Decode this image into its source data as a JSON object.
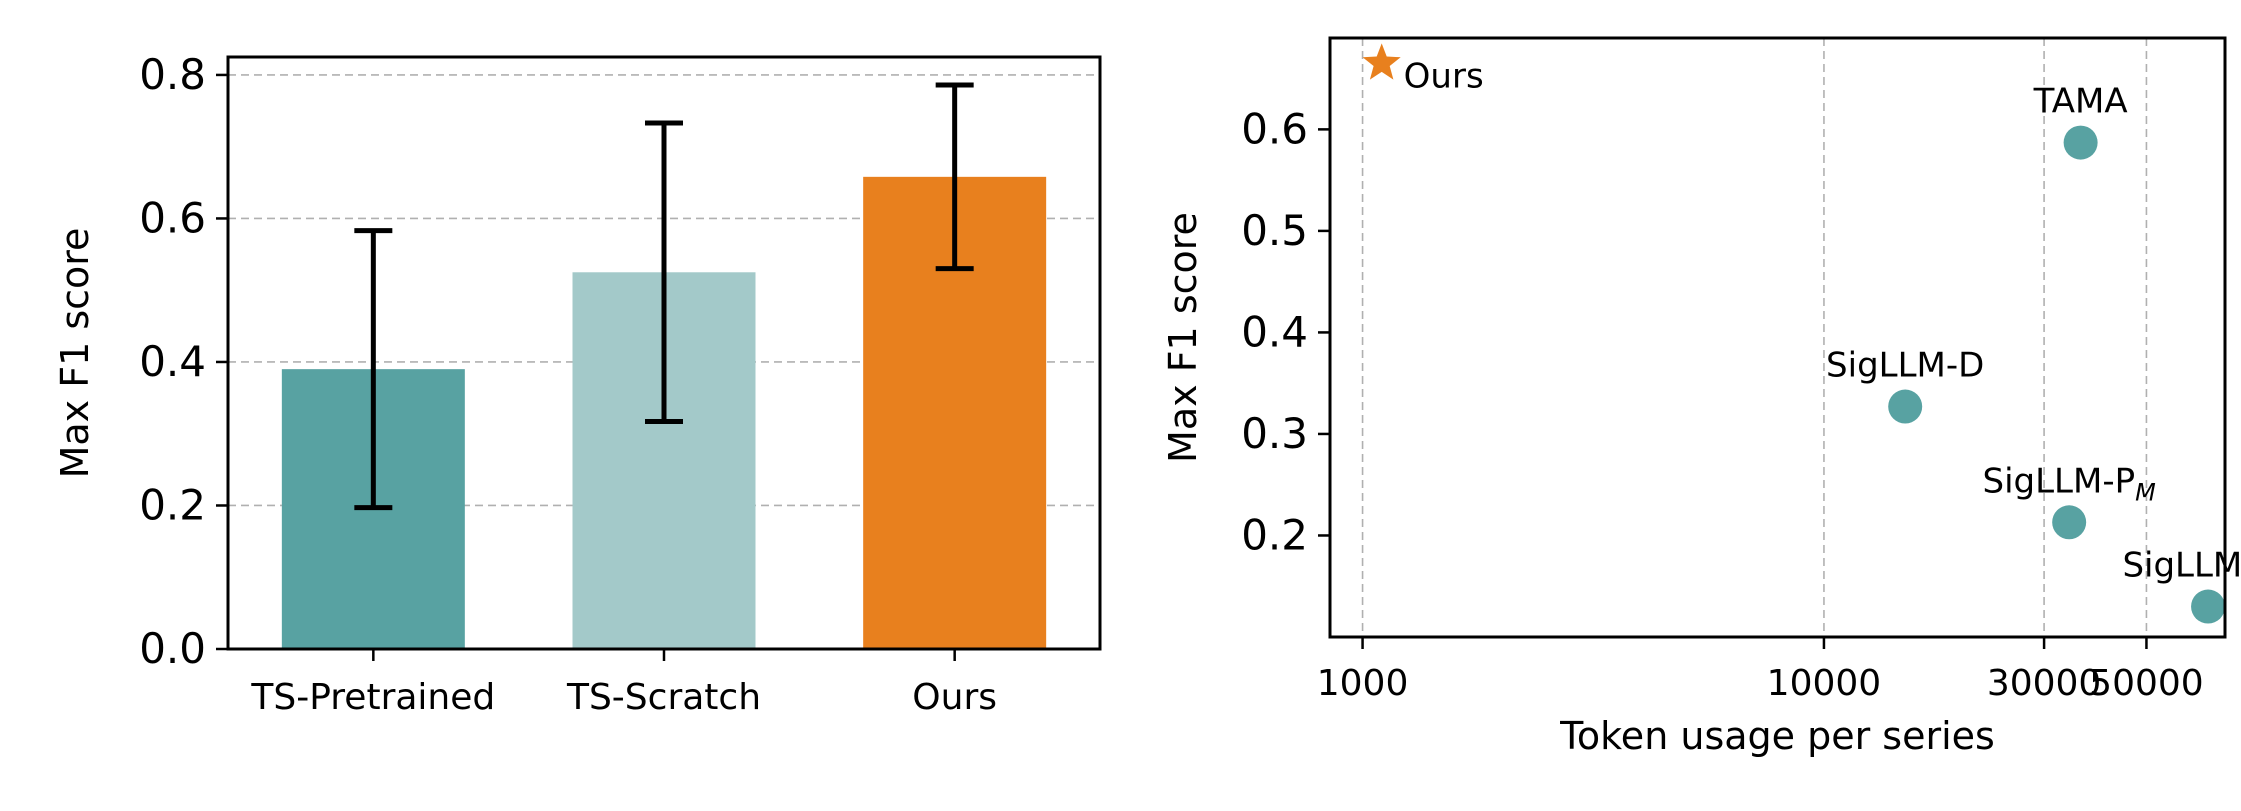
{
  "chart_data": [
    {
      "type": "bar",
      "categories": [
        "TS-Pretrained",
        "TS-Scratch",
        "Ours"
      ],
      "values": [
        0.39,
        0.525,
        0.658
      ],
      "error": [
        0.193,
        0.208,
        0.128
      ],
      "colors": [
        "#58a2a2",
        "#a3c9c9",
        "#e8801e"
      ],
      "ylabel": "Max F1 score",
      "ylim": [
        0,
        0.825
      ],
      "yticks": [
        0.0,
        0.2,
        0.4,
        0.6,
        0.8
      ],
      "ytick_labels": [
        "0.0",
        "0.2",
        "0.4",
        "0.6",
        "0.8"
      ],
      "grid": "horizontal dashed"
    },
    {
      "type": "scatter",
      "xlabel": "Token usage per series",
      "ylabel": "Max F1 score",
      "xscale": "log",
      "xlim": [
        850,
        74000
      ],
      "ylim": [
        0.1,
        0.69
      ],
      "xticks": [
        1000,
        10000,
        30000,
        50000
      ],
      "xtick_labels": [
        "1000",
        "10000",
        "30000",
        "50000"
      ],
      "yticks": [
        0.2,
        0.3,
        0.4,
        0.5,
        0.6
      ],
      "ytick_labels": [
        "0.2",
        "0.3",
        "0.4",
        "0.5",
        "0.6"
      ],
      "grid": "vertical dashed",
      "points": [
        {
          "label": "Ours",
          "sub": "",
          "x": 1100,
          "y": 0.665,
          "marker": "star",
          "color": "#e8801e"
        },
        {
          "label": "TAMA",
          "sub": "",
          "x": 36000,
          "y": 0.587,
          "marker": "circle",
          "color": "#58a2a2"
        },
        {
          "label": "SigLLM-D",
          "sub": "",
          "x": 15000,
          "y": 0.327,
          "marker": "circle",
          "color": "#58a2a2"
        },
        {
          "label": "SigLLM-P",
          "sub": "M",
          "x": 34000,
          "y": 0.213,
          "marker": "circle",
          "color": "#58a2a2"
        },
        {
          "label": "SigLLM-P",
          "sub": "G",
          "x": 68000,
          "y": 0.13,
          "marker": "circle",
          "color": "#58a2a2"
        }
      ]
    }
  ]
}
